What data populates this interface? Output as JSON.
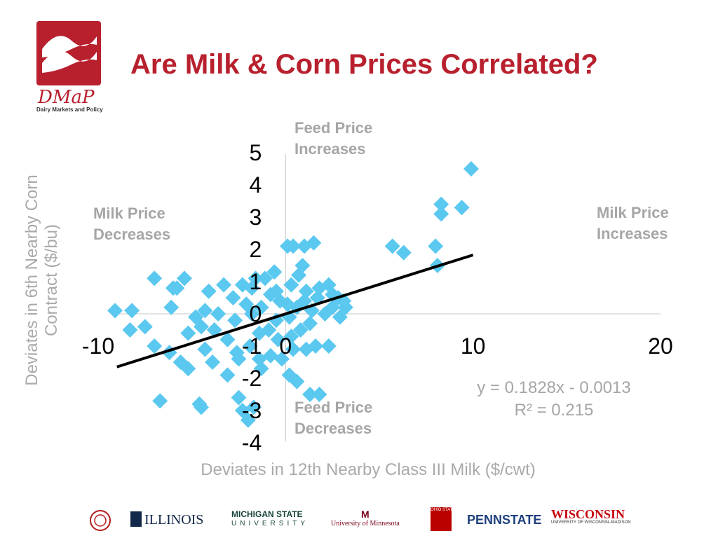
{
  "slide": {
    "title": "Are Milk & Corn Prices Correlated?",
    "logo": {
      "text": "DMaP",
      "subtitle": "Dairy Markets and Policy"
    },
    "quadrants": {
      "top_line1": "Feed Price",
      "top_line2": "Increases",
      "bottom_line1": "Feed Price",
      "bottom_line2": "Decreases",
      "left_line1": "Milk Price",
      "left_line2": "Decreases",
      "right_line1": "Milk Price",
      "right_line2": "Increases"
    },
    "trendline": {
      "equation": "y = 0.1828x - 0.0013",
      "r2": "R² = 0.215"
    },
    "footer_logos": [
      "ILLINOIS",
      "MICHIGAN STATE",
      "UNIVERSITY",
      "University of Minnesota",
      "OHIO STATE UNIVERSITY",
      "PENNSTATE",
      "WISCONSIN",
      "UNIVERSITY OF WISCONSIN–MADISON"
    ]
  },
  "colors": {
    "accent": "#b8202e",
    "marker": "#5bc8f0",
    "trend": "#000000",
    "muted_text": "#a6a6a6"
  },
  "chart_data": {
    "type": "scatter",
    "xlabel": "Deviates in 12th Nearby Class III Milk ($/cwt)",
    "ylabel": "Deviates in 6th Nearby Corn Contract ($/bu)",
    "xlim": [
      -10,
      20
    ],
    "ylim": [
      -4,
      5
    ],
    "xticks": [
      -10,
      0,
      10,
      20
    ],
    "yticks": [
      -4,
      -3,
      -2,
      -1,
      0,
      1,
      2,
      3,
      4,
      5
    ],
    "trendline": {
      "slope": 0.1828,
      "intercept": -0.0013,
      "x_range": [
        -9,
        10
      ]
    },
    "marker": "diamond",
    "series": [
      {
        "values": [
          [
            9.9,
            4.5
          ],
          [
            8.3,
            3.4
          ],
          [
            8.3,
            3.1
          ],
          [
            9.4,
            3.3
          ],
          [
            8.0,
            2.1
          ],
          [
            8.1,
            1.5
          ],
          [
            5.7,
            2.1
          ],
          [
            6.3,
            1.9
          ],
          [
            0.1,
            2.1
          ],
          [
            0.4,
            2.1
          ],
          [
            1.0,
            2.1
          ],
          [
            1.5,
            2.2
          ],
          [
            -1.1,
            1.1
          ],
          [
            -0.6,
            1.3
          ],
          [
            0.7,
            1.2
          ],
          [
            0.9,
            1.5
          ],
          [
            -7.0,
            1.1
          ],
          [
            -5.4,
            1.1
          ],
          [
            -5.8,
            0.8
          ],
          [
            -6.0,
            0.8
          ],
          [
            -4.1,
            0.7
          ],
          [
            -3.3,
            0.9
          ],
          [
            -2.3,
            0.9
          ],
          [
            -2.8,
            0.5
          ],
          [
            -1.6,
            1.1
          ],
          [
            -1.8,
            0.8
          ],
          [
            -0.5,
            0.7
          ],
          [
            0.3,
            0.9
          ],
          [
            1.1,
            0.7
          ],
          [
            1.8,
            0.8
          ],
          [
            2.3,
            0.9
          ],
          [
            2.8,
            0.5
          ],
          [
            3.1,
            0.4
          ],
          [
            2.5,
            0.6
          ],
          [
            -9.1,
            0.1
          ],
          [
            -8.2,
            0.1
          ],
          [
            -6.1,
            0.2
          ],
          [
            -4.8,
            -0.1
          ],
          [
            -4.3,
            0.1
          ],
          [
            -3.6,
            0.0
          ],
          [
            -2.7,
            -0.2
          ],
          [
            -2.1,
            0.3
          ],
          [
            -1.3,
            0.2
          ],
          [
            -0.8,
            0.6
          ],
          [
            -0.3,
            0.4
          ],
          [
            0.1,
            0.3
          ],
          [
            0.6,
            0.2
          ],
          [
            1.0,
            0.4
          ],
          [
            1.4,
            0.1
          ],
          [
            1.7,
            0.5
          ],
          [
            2.1,
            0.0
          ],
          [
            2.5,
            0.2
          ],
          [
            2.9,
            -0.1
          ],
          [
            3.2,
            0.2
          ],
          [
            -1.8,
            0.0
          ],
          [
            -0.5,
            -0.2
          ],
          [
            0.2,
            -0.1
          ],
          [
            0.8,
            -0.5
          ],
          [
            1.3,
            -0.3
          ],
          [
            -8.3,
            -0.5
          ],
          [
            -7.5,
            -0.4
          ],
          [
            -5.2,
            -0.6
          ],
          [
            -4.5,
            -0.4
          ],
          [
            -3.8,
            -0.5
          ],
          [
            -3.1,
            -0.8
          ],
          [
            -2.6,
            -1.2
          ],
          [
            -1.9,
            -1.0
          ],
          [
            -1.4,
            -0.6
          ],
          [
            -0.9,
            -0.5
          ],
          [
            -0.4,
            -0.8
          ],
          [
            0.3,
            -0.7
          ],
          [
            -7.0,
            -1.0
          ],
          [
            -6.2,
            -1.2
          ],
          [
            -5.6,
            -1.5
          ],
          [
            -5.2,
            -1.7
          ],
          [
            -4.3,
            -1.1
          ],
          [
            -3.9,
            -1.5
          ],
          [
            -3.1,
            -1.9
          ],
          [
            -2.5,
            -1.4
          ],
          [
            -1.4,
            -1.4
          ],
          [
            -0.8,
            -1.3
          ],
          [
            -0.2,
            -1.4
          ],
          [
            0.4,
            -1.1
          ],
          [
            1.1,
            -1.1
          ],
          [
            1.6,
            -1.0
          ],
          [
            2.3,
            -1.0
          ],
          [
            -1.3,
            -1.7
          ],
          [
            0.2,
            -1.9
          ],
          [
            0.6,
            -2.1
          ],
          [
            -6.7,
            -2.7
          ],
          [
            -4.6,
            -2.8
          ],
          [
            -4.5,
            -2.9
          ],
          [
            -2.5,
            -2.6
          ],
          [
            -2.3,
            -3.0
          ],
          [
            -2.0,
            -3.3
          ],
          [
            -1.7,
            -2.9
          ],
          [
            1.3,
            -2.5
          ],
          [
            1.8,
            -2.5
          ]
        ]
      }
    ]
  }
}
